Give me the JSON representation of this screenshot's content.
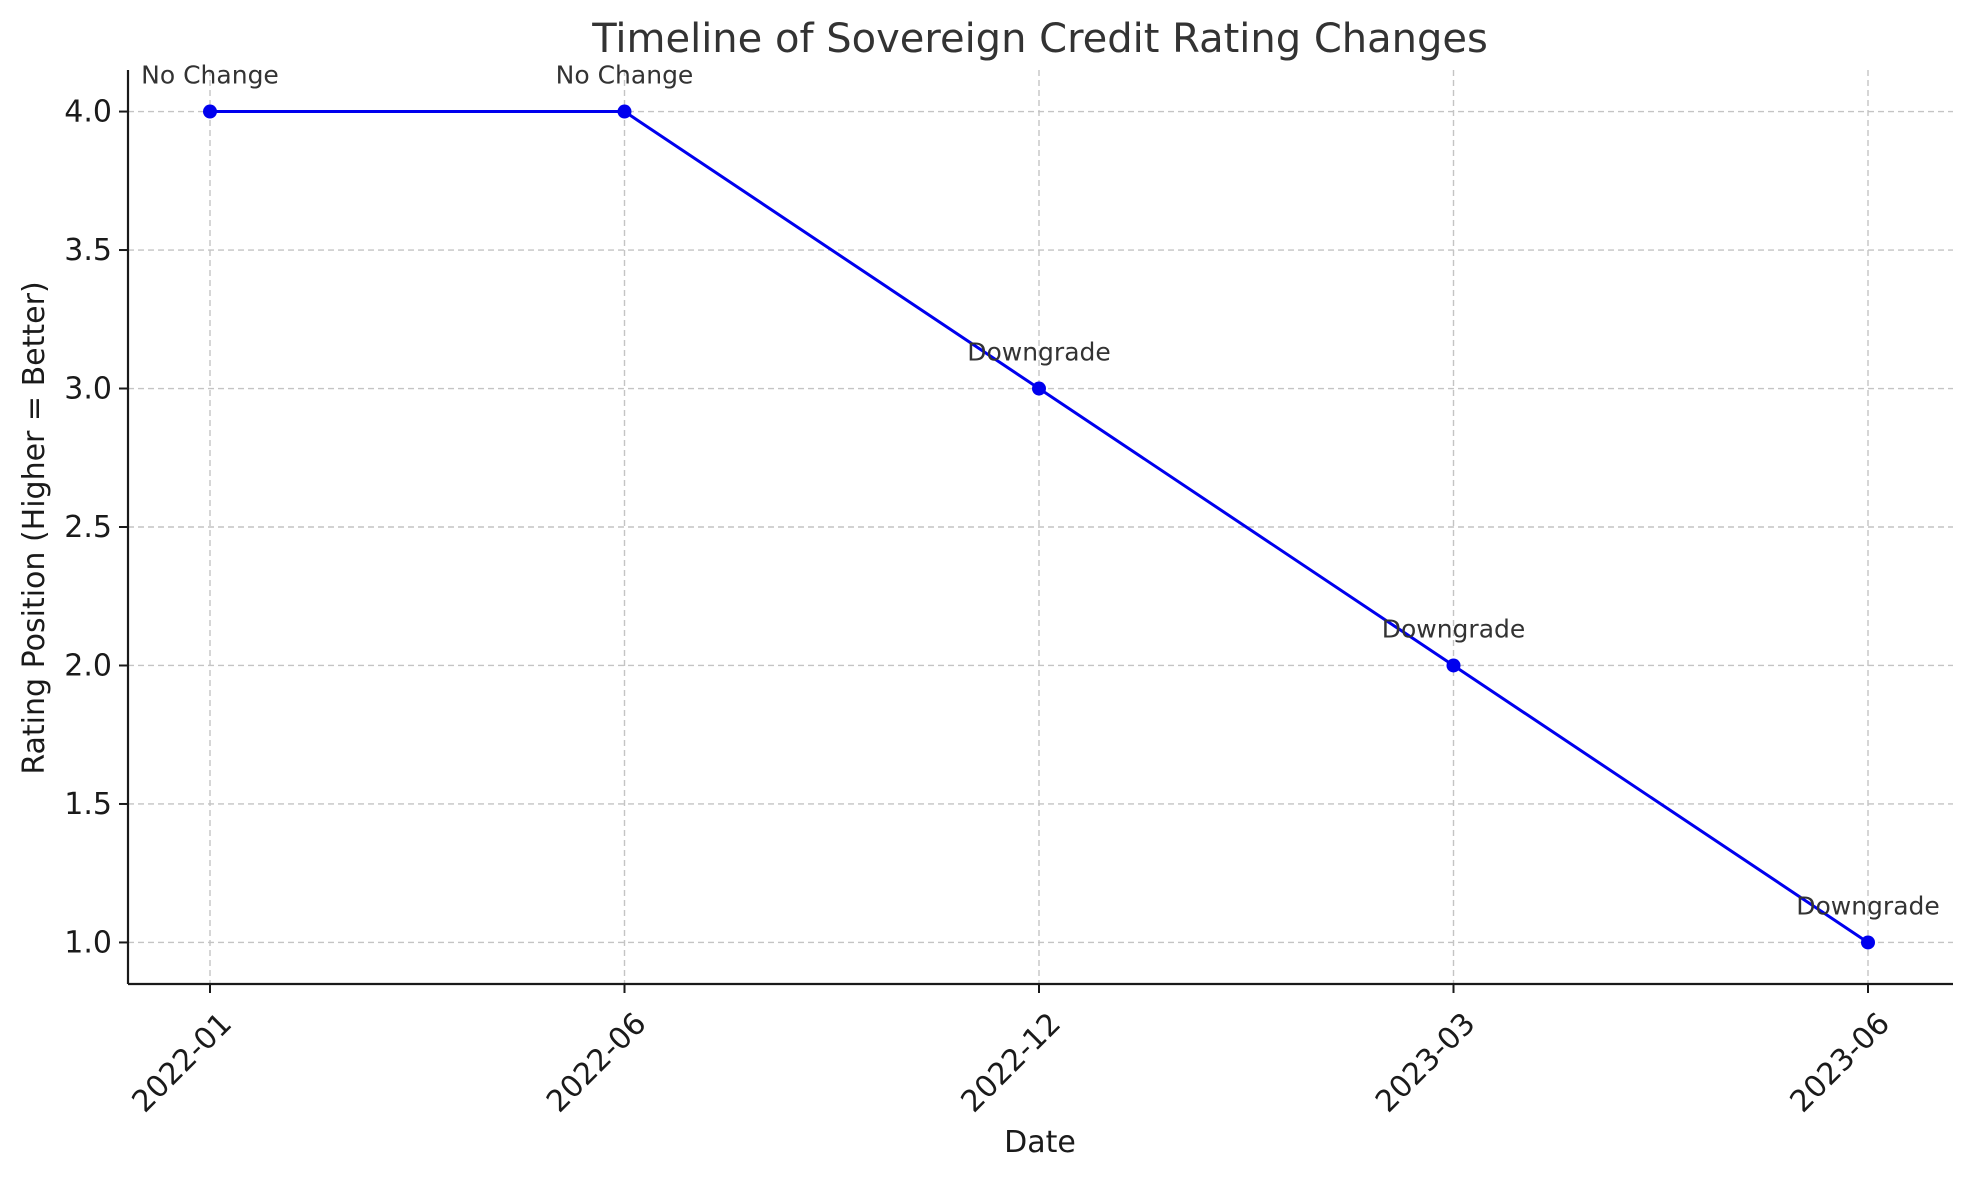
{
  "chart_data": {
    "type": "line",
    "title": "Timeline of Sovereign Credit Rating Changes",
    "xlabel": "Date",
    "ylabel": "Rating Position (Higher = Better)",
    "x": [
      "2022-01",
      "2022-06",
      "2022-12",
      "2023-03",
      "2023-06"
    ],
    "series": [
      {
        "values": [
          4.0,
          4.0,
          3.0,
          2.0,
          1.0
        ],
        "color": "#0000ee",
        "marker": "circle"
      }
    ],
    "annotations": [
      "No Change",
      "No Change",
      "Downgrade",
      "Downgrade",
      "Downgrade"
    ],
    "yticks": [
      "1.0",
      "1.5",
      "2.0",
      "2.5",
      "3.0",
      "3.5",
      "4.0"
    ],
    "ylim": [
      0.85,
      4.15
    ],
    "grid": true,
    "legend": "none"
  }
}
